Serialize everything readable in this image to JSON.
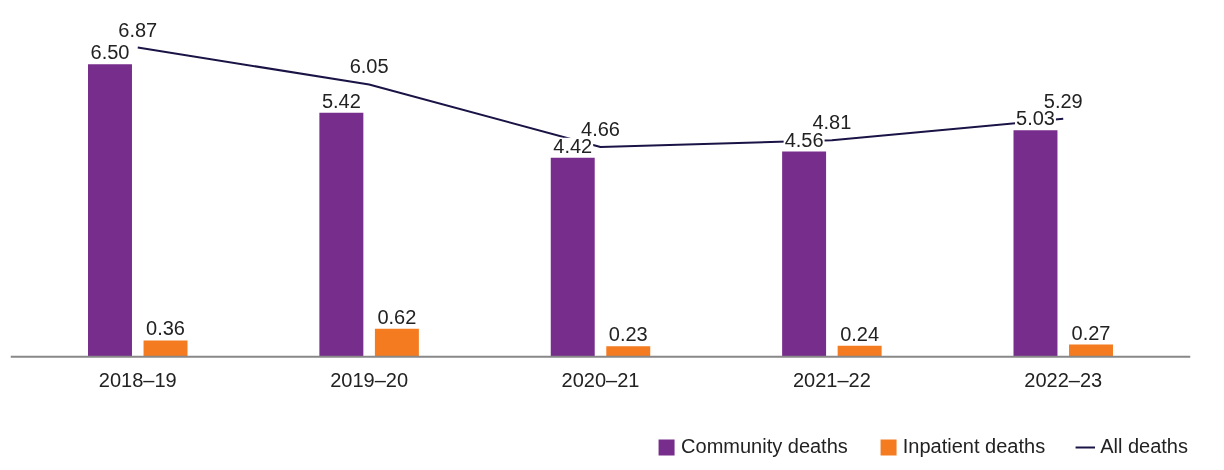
{
  "chart_data": {
    "type": "bar",
    "categories": [
      "2018–19",
      "2019–20",
      "2020–21",
      "2021–22",
      "2022–23"
    ],
    "series": [
      {
        "name": "Community deaths",
        "color": "#772d8b",
        "values": [
          6.5,
          5.42,
          4.42,
          4.56,
          5.03
        ],
        "value_labels": [
          "6.50",
          "5.42",
          "4.42",
          "4.56",
          "5.03"
        ]
      },
      {
        "name": "Inpatient deaths",
        "color": "#f47b20",
        "values": [
          0.36,
          0.62,
          0.23,
          0.24,
          0.27
        ],
        "value_labels": [
          "0.36",
          "0.62",
          "0.23",
          "0.24",
          "0.27"
        ]
      },
      {
        "name": "All deaths",
        "type": "line",
        "color": "#1a1446",
        "values": [
          6.87,
          6.05,
          4.66,
          4.81,
          5.29
        ],
        "value_labels": [
          "6.87",
          "6.05",
          "4.66",
          "4.81",
          "5.29"
        ]
      }
    ],
    "legend": "bottom right",
    "grid": false,
    "marker": "none"
  }
}
